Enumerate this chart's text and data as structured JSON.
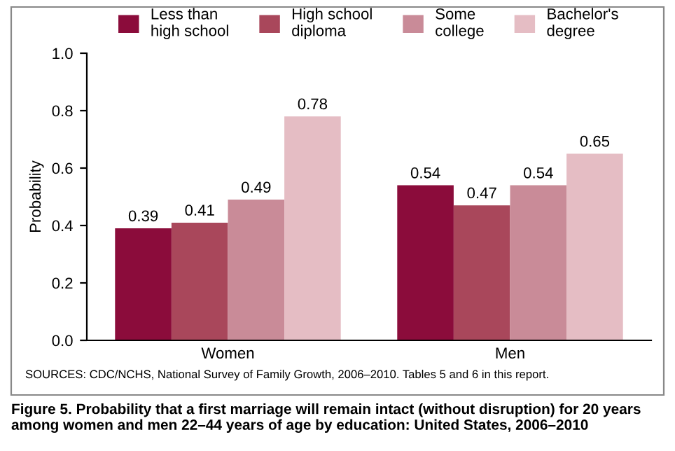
{
  "chart_data": {
    "type": "bar",
    "title": "Figure 5. Probability that a first marriage will remain intact (without disruption) for 20 years among women and men 22–44 years of age by education: United States, 2006–2010",
    "ylabel": "Probability",
    "categories": [
      "Women",
      "Men"
    ],
    "series": [
      {
        "name": "Less than\nhigh school",
        "color": "#8b0c3b",
        "values": [
          0.39,
          0.54
        ]
      },
      {
        "name": "High school\ndiploma",
        "color": "#a9475b",
        "values": [
          0.41,
          0.47
        ]
      },
      {
        "name": "Some\ncollege",
        "color": "#c98b98",
        "values": [
          0.49,
          0.54
        ]
      },
      {
        "name": "Bachelor's\ndegree",
        "color": "#e5bdc4",
        "values": [
          0.78,
          0.65
        ]
      }
    ],
    "ylim": [
      0.0,
      1.0
    ],
    "yticks": [
      {
        "value": 0,
        "label": "0.0"
      },
      0.2,
      0.4,
      0.6,
      0.8,
      {
        "value": 1,
        "label": "1.0"
      }
    ],
    "data_labels": true,
    "grid": false,
    "legend": "top",
    "annotations": [
      "SOURCES: CDC/NCHS, National Survey of Family Growth, 2006–2010. Tables 5 and 6 in this report."
    ]
  }
}
